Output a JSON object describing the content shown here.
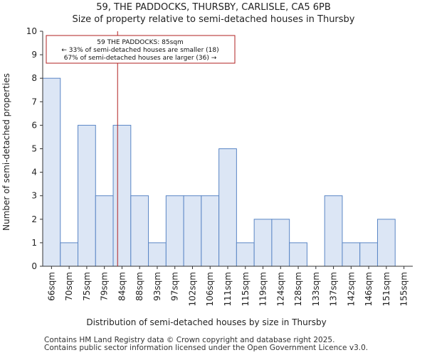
{
  "chart_data": {
    "type": "bar",
    "title": "59, THE PADDOCKS, THURSBY, CARLISLE, CA5 6PB",
    "subtitle": "Size of property relative to semi-detached houses in Thursby",
    "xlabel": "Distribution of semi-detached houses by size in Thursby",
    "ylabel": "Number of semi-detached properties",
    "categories": [
      "66sqm",
      "70sqm",
      "75sqm",
      "79sqm",
      "84sqm",
      "88sqm",
      "93sqm",
      "97sqm",
      "102sqm",
      "106sqm",
      "111sqm",
      "115sqm",
      "119sqm",
      "124sqm",
      "128sqm",
      "133sqm",
      "137sqm",
      "142sqm",
      "146sqm",
      "151sqm",
      "155sqm"
    ],
    "values": [
      8,
      1,
      6,
      3,
      6,
      3,
      1,
      3,
      3,
      3,
      5,
      1,
      2,
      2,
      1,
      0,
      3,
      1,
      1,
      2,
      0
    ],
    "ylim": [
      0,
      10
    ],
    "yticks": [
      0,
      1,
      2,
      3,
      4,
      5,
      6,
      7,
      8,
      9,
      10
    ],
    "marker": {
      "value_sqm": 85,
      "bin_position": 4.25
    },
    "annotation": {
      "line1": "59 THE PADDOCKS: 85sqm",
      "line2": "← 33% of semi-detached houses are smaller (18)",
      "line3": "67% of semi-detached houses are larger (36) →"
    },
    "colors": {
      "bar_fill": "#dce6f5",
      "bar_edge": "#5a86c5",
      "marker": "#b22222"
    }
  },
  "footer": {
    "line1": "Contains HM Land Registry data © Crown copyright and database right 2025.",
    "line2": "Contains public sector information licensed under the Open Government Licence v3.0."
  }
}
